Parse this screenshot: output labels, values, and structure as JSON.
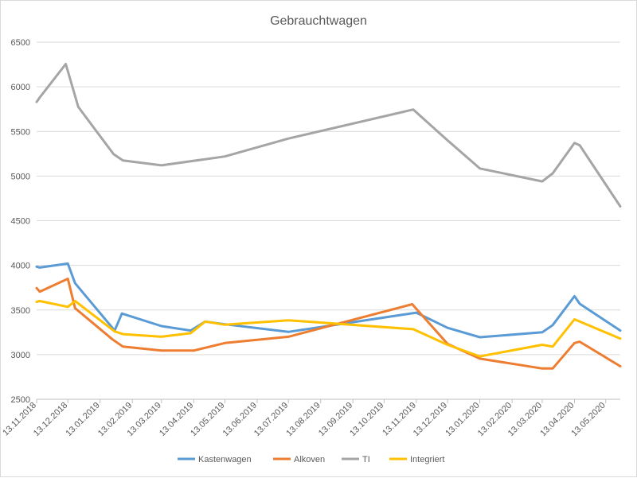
{
  "chart_data": {
    "type": "line",
    "title": "Gebrauchtwagen",
    "xlabel": "",
    "ylabel": "",
    "ylim": [
      2500,
      6500
    ],
    "yticks": [
      2500,
      3000,
      3500,
      4000,
      4500,
      5000,
      5500,
      6000,
      6500
    ],
    "x_range": [
      "2018-11-13",
      "2020-05-27"
    ],
    "xticks": [
      "13.11.2018",
      "13.12.2018",
      "13.01.2019",
      "13.02.2019",
      "13.03.2019",
      "13.04.2019",
      "13.05.2019",
      "13.06.2019",
      "13.07.2019",
      "13.08.2019",
      "13.09.2019",
      "13.10.2019",
      "13.11.2019",
      "13.12.2019",
      "13.01.2020",
      "13.02.2020",
      "13.03.2020",
      "13.04.2020",
      "13.05.2020"
    ],
    "grid": "horizontal",
    "legend_position": "bottom",
    "series": [
      {
        "name": "Kastenwagen",
        "color": "#5b9bd5",
        "points": [
          {
            "x": "2018-11-13",
            "y": 3985
          },
          {
            "x": "2018-11-16",
            "y": 3975
          },
          {
            "x": "2018-12-13",
            "y": 4020
          },
          {
            "x": "2018-12-20",
            "y": 3800
          },
          {
            "x": "2019-01-27",
            "y": 3270
          },
          {
            "x": "2019-02-03",
            "y": 3460
          },
          {
            "x": "2019-03-13",
            "y": 3320
          },
          {
            "x": "2019-04-10",
            "y": 3270
          },
          {
            "x": "2019-04-24",
            "y": 3370
          },
          {
            "x": "2019-05-13",
            "y": 3340
          },
          {
            "x": "2019-07-13",
            "y": 3255
          },
          {
            "x": "2019-11-13",
            "y": 3470
          },
          {
            "x": "2019-12-13",
            "y": 3300
          },
          {
            "x": "2020-01-13",
            "y": 3195
          },
          {
            "x": "2020-03-13",
            "y": 3250
          },
          {
            "x": "2020-03-23",
            "y": 3330
          },
          {
            "x": "2020-04-13",
            "y": 3655
          },
          {
            "x": "2020-04-18",
            "y": 3570
          },
          {
            "x": "2020-05-27",
            "y": 3270
          }
        ]
      },
      {
        "name": "Alkoven",
        "color": "#ed7d31",
        "points": [
          {
            "x": "2018-11-13",
            "y": 3745
          },
          {
            "x": "2018-11-16",
            "y": 3705
          },
          {
            "x": "2018-12-13",
            "y": 3850
          },
          {
            "x": "2018-12-20",
            "y": 3520
          },
          {
            "x": "2019-01-25",
            "y": 3170
          },
          {
            "x": "2019-02-04",
            "y": 3090
          },
          {
            "x": "2019-03-13",
            "y": 3045
          },
          {
            "x": "2019-04-13",
            "y": 3045
          },
          {
            "x": "2019-05-13",
            "y": 3130
          },
          {
            "x": "2019-07-13",
            "y": 3200
          },
          {
            "x": "2019-11-09",
            "y": 3565
          },
          {
            "x": "2019-12-13",
            "y": 3120
          },
          {
            "x": "2020-01-13",
            "y": 2955
          },
          {
            "x": "2020-03-13",
            "y": 2845
          },
          {
            "x": "2020-03-23",
            "y": 2845
          },
          {
            "x": "2020-04-13",
            "y": 3130
          },
          {
            "x": "2020-04-18",
            "y": 3145
          },
          {
            "x": "2020-05-27",
            "y": 2870
          }
        ]
      },
      {
        "name": "TI",
        "color": "#a5a5a5",
        "points": [
          {
            "x": "2018-11-13",
            "y": 5830
          },
          {
            "x": "2018-11-16",
            "y": 5880
          },
          {
            "x": "2018-12-11",
            "y": 6255
          },
          {
            "x": "2018-12-23",
            "y": 5775
          },
          {
            "x": "2019-01-26",
            "y": 5245
          },
          {
            "x": "2019-02-04",
            "y": 5175
          },
          {
            "x": "2019-03-13",
            "y": 5120
          },
          {
            "x": "2019-05-13",
            "y": 5220
          },
          {
            "x": "2019-07-13",
            "y": 5420
          },
          {
            "x": "2019-11-10",
            "y": 5745
          },
          {
            "x": "2019-12-13",
            "y": 5400
          },
          {
            "x": "2020-01-13",
            "y": 5085
          },
          {
            "x": "2020-03-13",
            "y": 4940
          },
          {
            "x": "2020-03-23",
            "y": 5030
          },
          {
            "x": "2020-04-13",
            "y": 5370
          },
          {
            "x": "2020-04-18",
            "y": 5345
          },
          {
            "x": "2020-05-27",
            "y": 4660
          }
        ]
      },
      {
        "name": "Integriert",
        "color": "#ffc000",
        "points": [
          {
            "x": "2018-11-13",
            "y": 3590
          },
          {
            "x": "2018-11-16",
            "y": 3600
          },
          {
            "x": "2018-12-13",
            "y": 3535
          },
          {
            "x": "2018-12-20",
            "y": 3600
          },
          {
            "x": "2019-01-27",
            "y": 3260
          },
          {
            "x": "2019-02-04",
            "y": 3230
          },
          {
            "x": "2019-03-13",
            "y": 3200
          },
          {
            "x": "2019-04-10",
            "y": 3240
          },
          {
            "x": "2019-04-24",
            "y": 3370
          },
          {
            "x": "2019-05-13",
            "y": 3335
          },
          {
            "x": "2019-07-13",
            "y": 3385
          },
          {
            "x": "2019-11-10",
            "y": 3285
          },
          {
            "x": "2019-12-13",
            "y": 3110
          },
          {
            "x": "2020-01-13",
            "y": 2980
          },
          {
            "x": "2020-03-13",
            "y": 3110
          },
          {
            "x": "2020-03-23",
            "y": 3090
          },
          {
            "x": "2020-04-13",
            "y": 3395
          },
          {
            "x": "2020-05-27",
            "y": 3180
          }
        ]
      }
    ]
  }
}
